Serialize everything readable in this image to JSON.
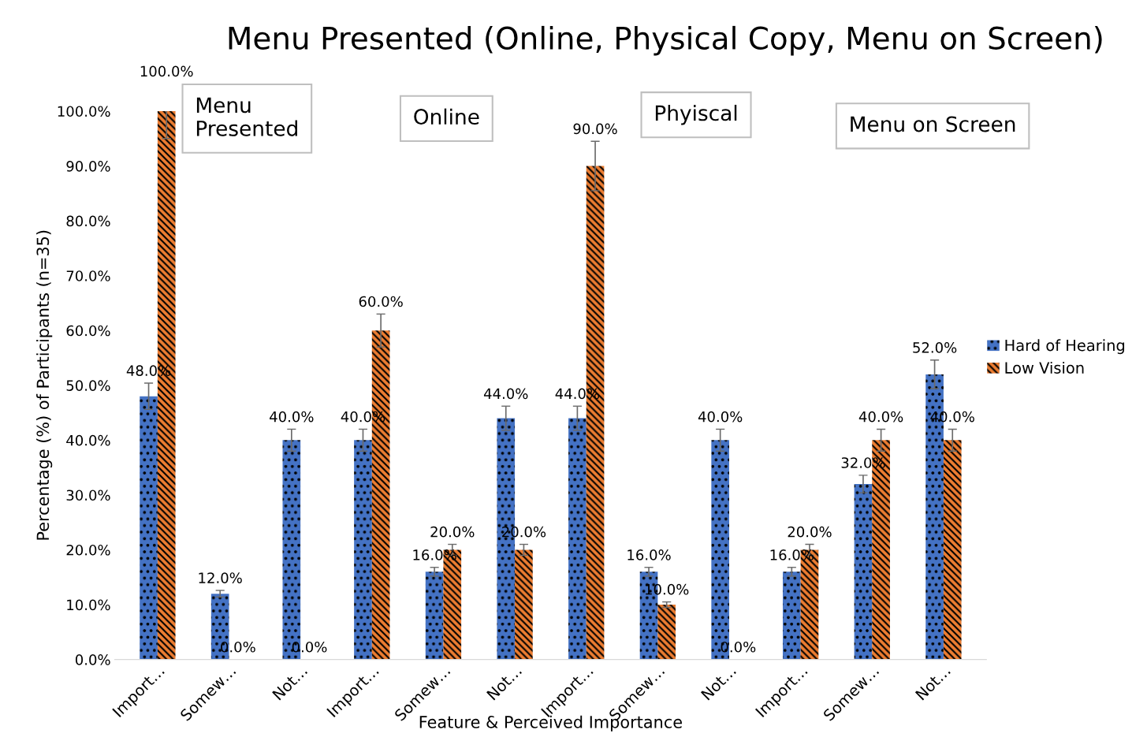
{
  "chart_data": {
    "type": "bar",
    "title": "Menu Presented (Online, Physical Copy, Menu on Screen)",
    "xlabel": "Feature & Perceived Importance",
    "ylabel": "Percentage (%) of Participants (n=35)",
    "categories": [
      "Import…",
      "Somew…",
      "Not…",
      "Import…",
      "Somew…",
      "Not…",
      "Import…",
      "Somew…",
      "Not…",
      "Import…",
      "Somew…",
      "Not…"
    ],
    "series": [
      {
        "name": "Hard of Hearing",
        "color": "#4472c4",
        "values": [
          48,
          12,
          40,
          40,
          16,
          44,
          44,
          16,
          40,
          16,
          32,
          52
        ],
        "errors": [
          2.4,
          0.6,
          2,
          2,
          0.8,
          2.2,
          2.2,
          0.8,
          2,
          0.8,
          1.6,
          2.6
        ],
        "value_labels": [
          "48.0%",
          "12.0%",
          "40.0%",
          "40.0%",
          "16.0%",
          "44.0%",
          "44.0%",
          "16.0%",
          "40.0%",
          "16.0%",
          "32.0%",
          "52.0%"
        ]
      },
      {
        "name": "Low Vision",
        "color": "#ed7d31",
        "values": [
          100,
          0,
          0,
          60,
          20,
          20,
          90,
          10,
          0,
          20,
          40,
          40
        ],
        "errors": [
          5,
          0,
          0,
          3,
          1,
          1,
          4.5,
          0.5,
          0,
          1,
          2,
          2
        ],
        "value_labels": [
          "100.0%",
          "0.0%",
          "0.0%",
          "60.0%",
          "20.0%",
          "20.0%",
          "90.0%",
          "10.0%",
          "0.0%",
          "20.0%",
          "40.0%",
          "40.0%"
        ]
      }
    ],
    "ylim": [
      0,
      100
    ],
    "yticks": [
      {
        "value": 0,
        "label": "0.0%"
      },
      {
        "value": 10,
        "label": "10.0%"
      },
      {
        "value": 20,
        "label": "20.0%"
      },
      {
        "value": 30,
        "label": "30.0%"
      },
      {
        "value": 40,
        "label": "40.0%"
      },
      {
        "value": 50,
        "label": "50.0%"
      },
      {
        "value": 60,
        "label": "60.0%"
      },
      {
        "value": 70,
        "label": "70.0%"
      },
      {
        "value": 80,
        "label": "80.0%"
      },
      {
        "value": 90,
        "label": "90.0%"
      },
      {
        "value": 100,
        "label": "100.0%"
      }
    ],
    "annotations": [
      "Menu\nPresented",
      "Online",
      "Phyiscal",
      "Menu on Screen"
    ],
    "grid": false,
    "legend": "right"
  }
}
